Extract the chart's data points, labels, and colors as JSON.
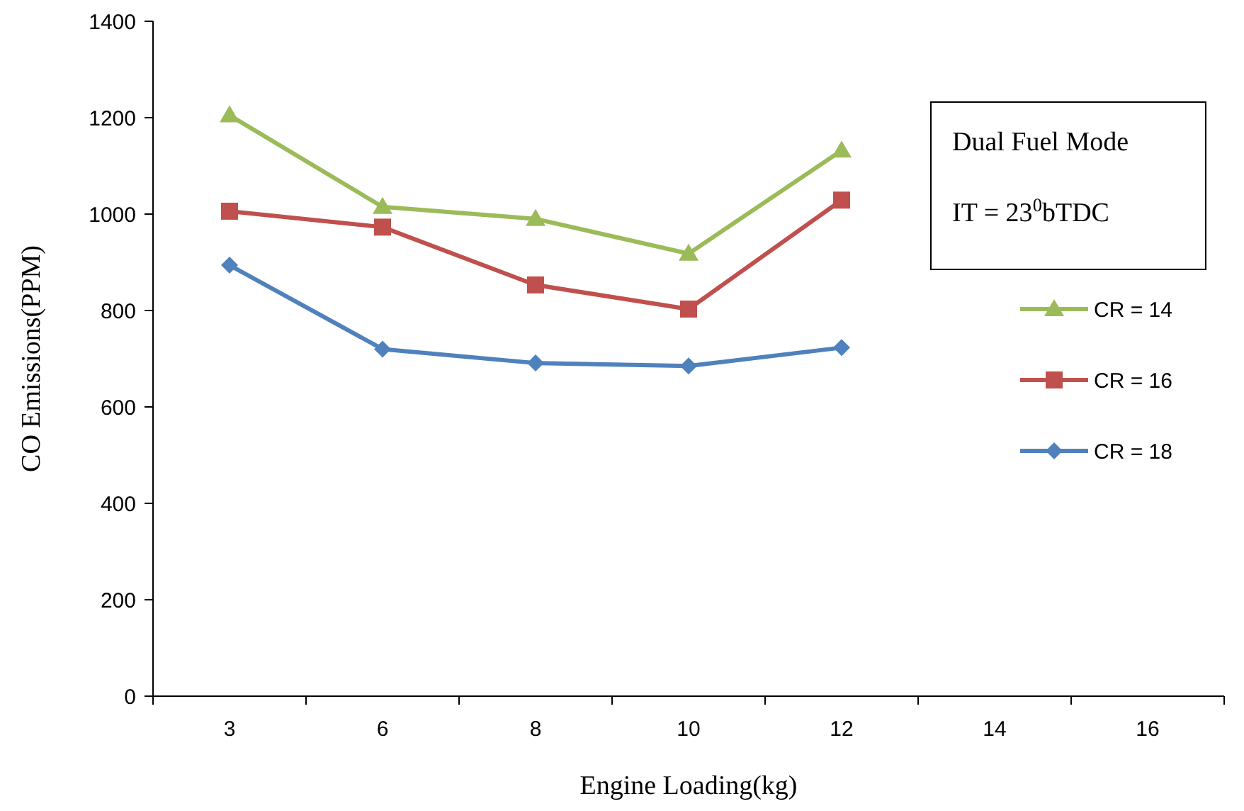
{
  "chart_data": {
    "type": "line",
    "xlabel": "Engine Loading(kg)",
    "ylabel": "CO Emissions(PPM)",
    "categories": [
      "3",
      "6",
      "8",
      "10",
      "12",
      "14",
      "16"
    ],
    "ylim": [
      0,
      1400
    ],
    "yticks": [
      0,
      200,
      400,
      600,
      800,
      1000,
      1200,
      1400
    ],
    "grid": false,
    "legend": "right",
    "annotations": [
      "Dual Fuel Mode",
      "IT = 23$^{0}$bTDC"
    ],
    "series": [
      {
        "name": "CR = 14",
        "color": "#9bbb59",
        "marker": "triangle",
        "values": [
          1205,
          1015,
          990,
          918,
          1132,
          null,
          null
        ]
      },
      {
        "name": "CR = 16",
        "color": "#c0504d",
        "marker": "square",
        "values": [
          1006,
          973,
          853,
          803,
          1029,
          null,
          null
        ]
      },
      {
        "name": "CR = 18",
        "color": "#4f81bd",
        "marker": "diamond",
        "values": [
          894,
          720,
          691,
          685,
          723,
          null,
          null
        ]
      }
    ]
  }
}
